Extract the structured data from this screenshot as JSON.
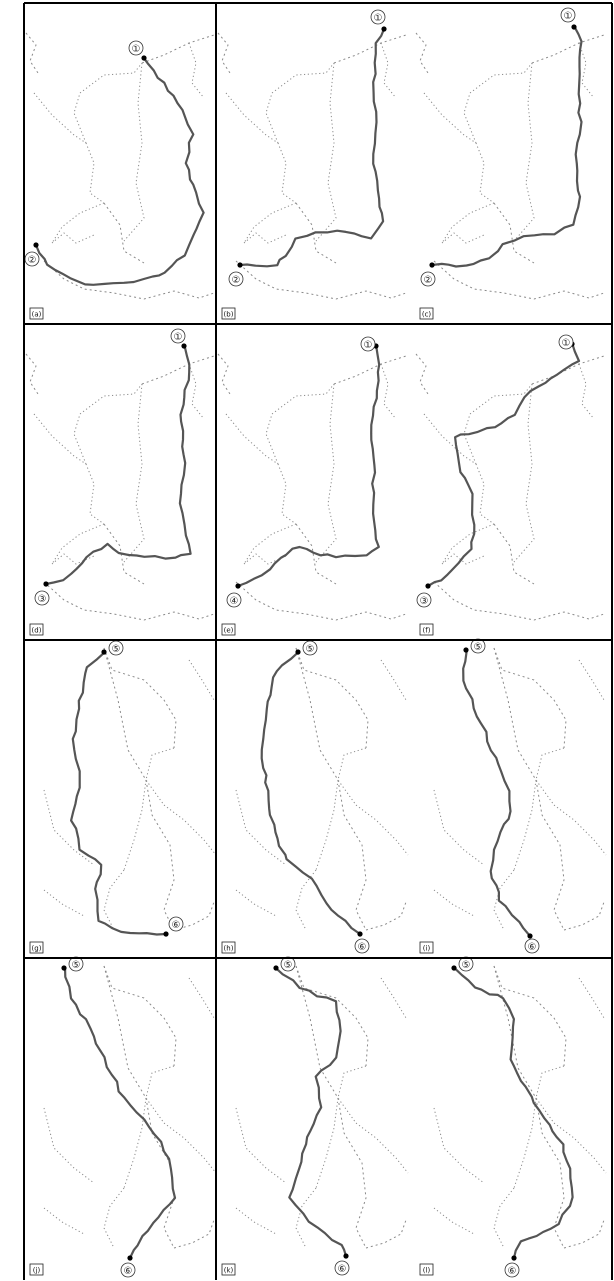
{
  "figure": {
    "panel_labels": [
      "(a)",
      "(b)",
      "(c)",
      "(d)",
      "(e)",
      "(f)",
      "(g)",
      "(h)",
      "(i)",
      "(j)",
      "(k)",
      "(l)"
    ],
    "node_labels": [
      "①",
      "②",
      "③",
      "④",
      "⑤",
      "⑥"
    ]
  },
  "colors": {
    "route": "#555555",
    "road": "#8a8a8a",
    "border": "#000000",
    "background": "#ffffff"
  }
}
